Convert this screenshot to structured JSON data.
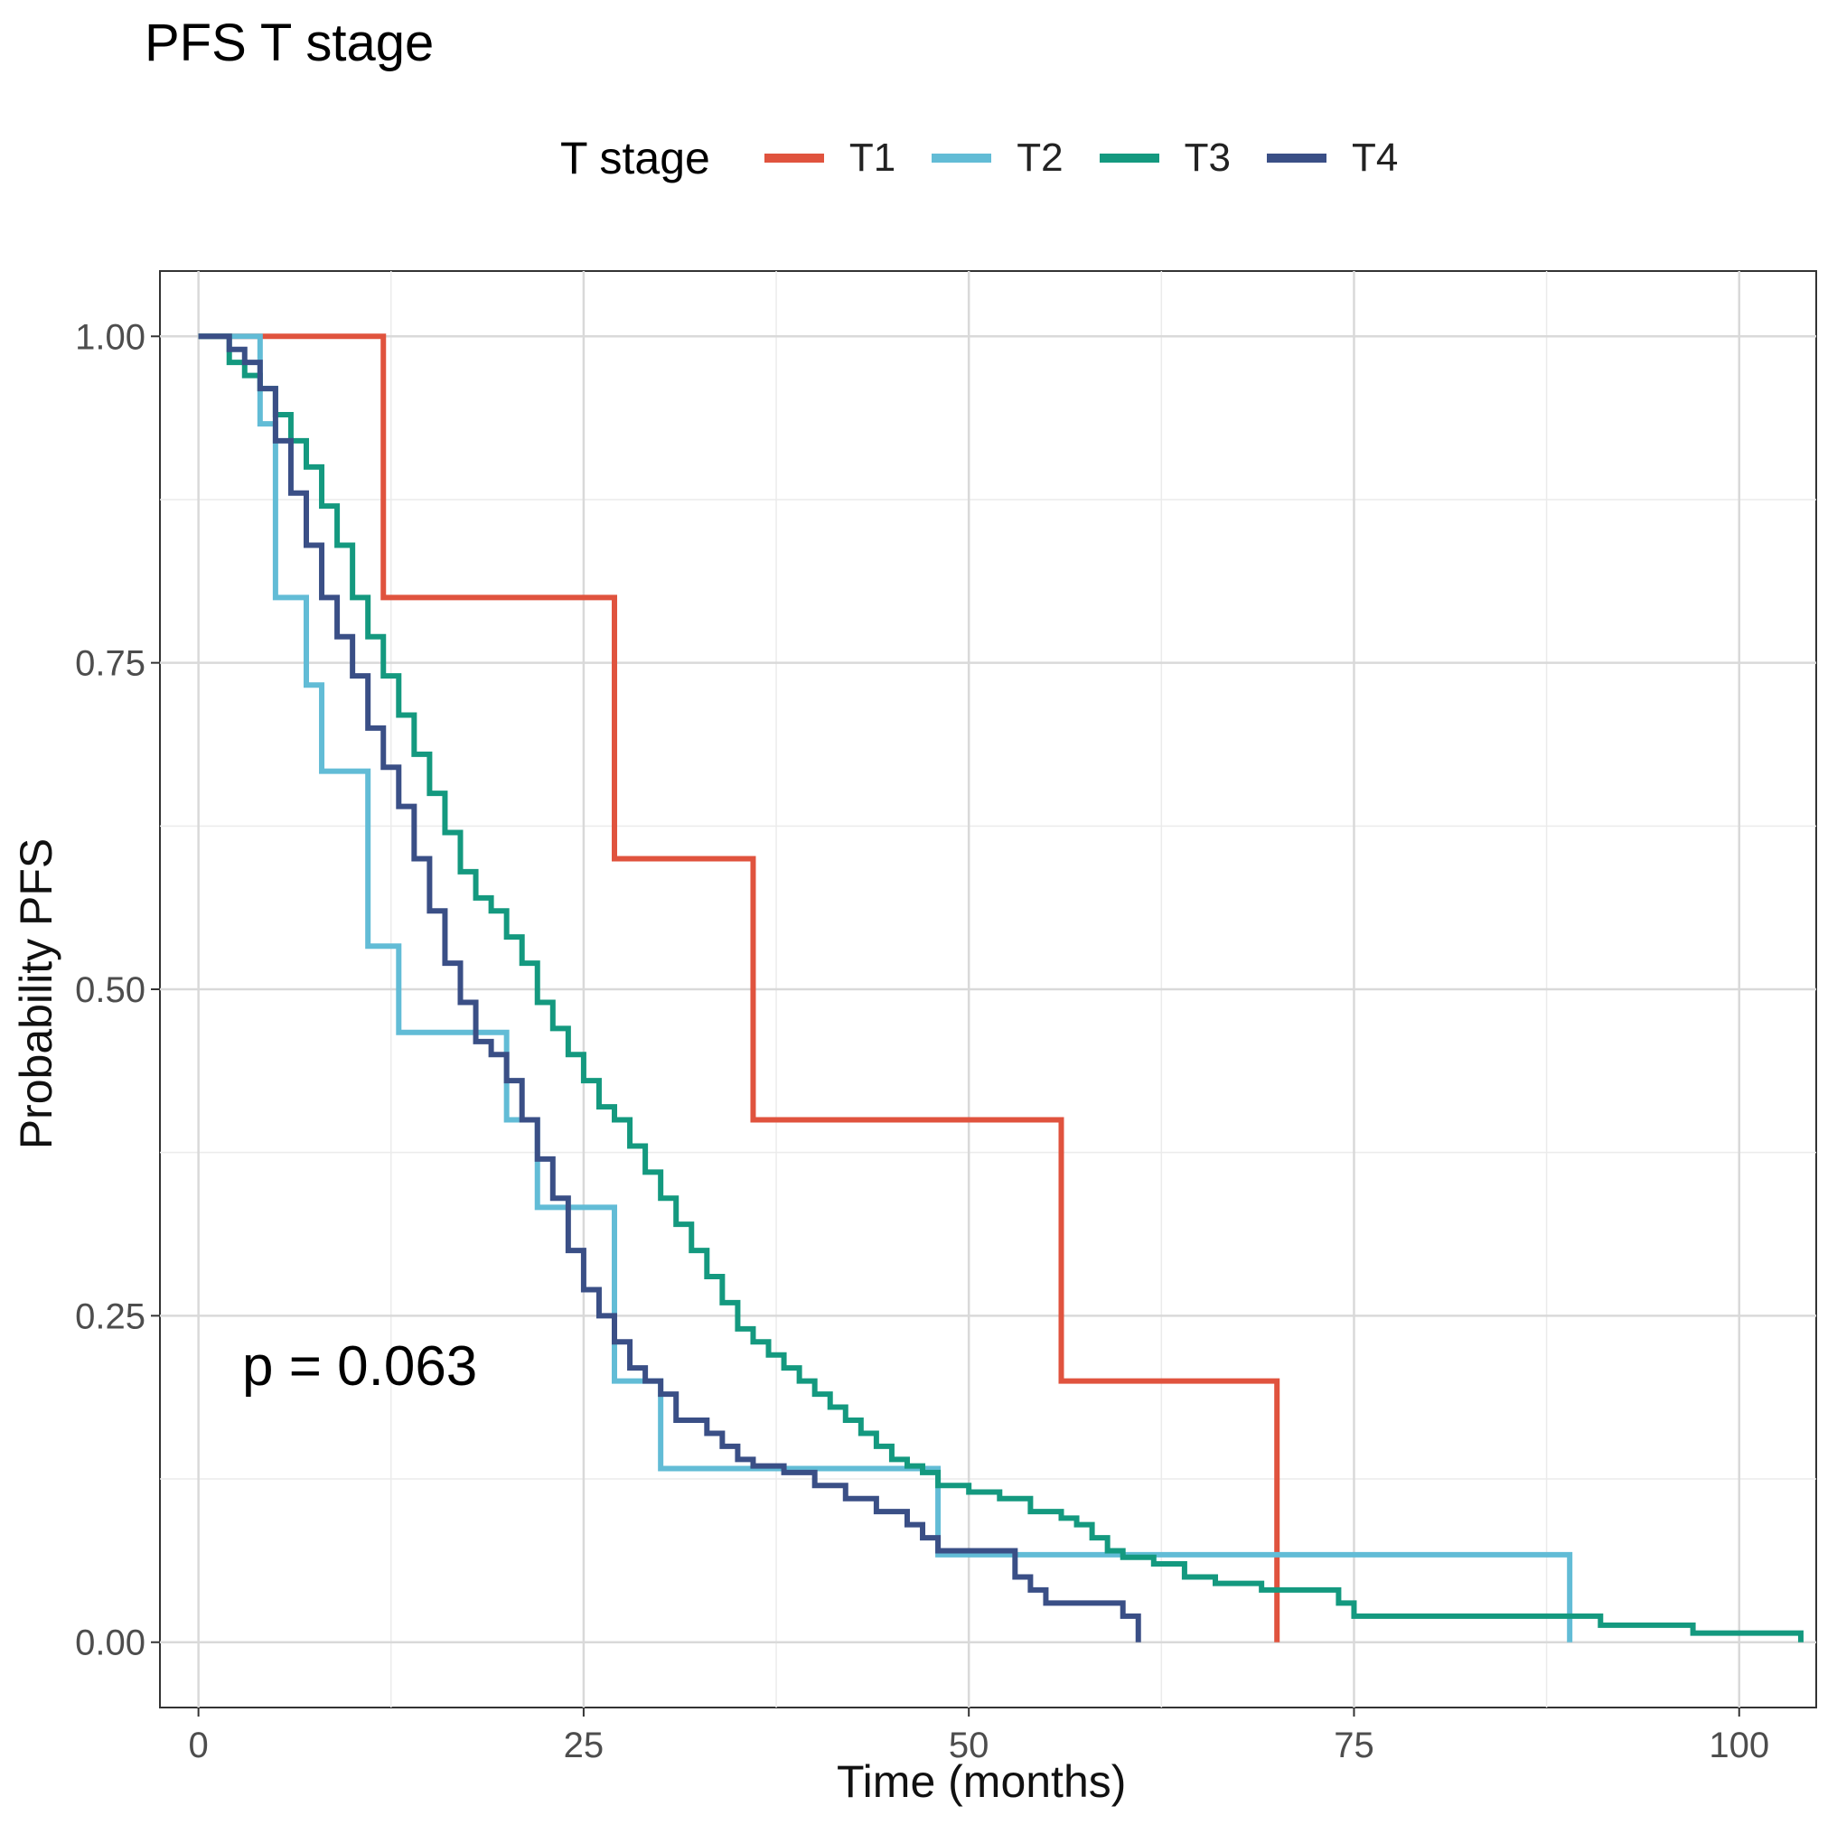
{
  "chart_data": {
    "type": "line",
    "step": true,
    "title": "PFS T stage",
    "xlabel": "Time (months)",
    "ylabel": "Probability PFS",
    "xlim": [
      -2.5,
      105
    ],
    "ylim": [
      -0.05,
      1.05
    ],
    "xticks": [
      0,
      25,
      50,
      75,
      100
    ],
    "yticks": [
      0.0,
      0.25,
      0.5,
      0.75,
      1.0
    ],
    "xtick_labels": [
      "0",
      "25",
      "50",
      "75",
      "100"
    ],
    "ytick_labels": [
      "0.00",
      "0.25",
      "0.50",
      "0.75",
      "1.00"
    ],
    "grid": true,
    "annotation": "p = 0.063",
    "legend_title": "T stage",
    "legend_position": "top",
    "series": [
      {
        "name": "T1",
        "color": "#E0533E",
        "x": [
          0,
          12,
          27,
          36,
          56,
          70
        ],
        "y": [
          1.0,
          0.8,
          0.6,
          0.4,
          0.2,
          0.0
        ]
      },
      {
        "name": "T2",
        "color": "#62BCD6",
        "x": [
          0,
          4,
          5,
          7,
          8,
          11,
          13,
          20,
          22,
          27,
          30,
          48,
          89
        ],
        "y": [
          1.0,
          0.933,
          0.8,
          0.733,
          0.667,
          0.533,
          0.467,
          0.4,
          0.333,
          0.2,
          0.133,
          0.067,
          0.0
        ]
      },
      {
        "name": "T3",
        "color": "#14997F",
        "x": [
          0,
          2,
          3,
          4,
          5,
          6,
          7,
          8,
          9,
          10,
          11,
          12,
          13,
          14,
          15,
          16,
          17,
          18,
          19,
          20,
          21,
          22,
          23,
          24,
          25,
          26,
          27,
          28,
          29,
          30,
          31,
          32,
          33,
          34,
          35,
          36,
          37,
          38,
          39,
          40,
          41,
          42,
          43,
          44,
          45,
          46,
          47,
          48,
          50,
          52,
          54,
          56,
          57,
          58,
          59,
          60,
          62,
          64,
          66,
          69,
          74,
          75,
          89,
          91,
          97,
          104
        ],
        "y": [
          1.0,
          0.98,
          0.97,
          0.96,
          0.94,
          0.92,
          0.9,
          0.87,
          0.84,
          0.8,
          0.77,
          0.74,
          0.71,
          0.68,
          0.65,
          0.62,
          0.59,
          0.57,
          0.56,
          0.54,
          0.52,
          0.49,
          0.47,
          0.45,
          0.43,
          0.41,
          0.4,
          0.38,
          0.36,
          0.34,
          0.32,
          0.3,
          0.28,
          0.26,
          0.24,
          0.23,
          0.22,
          0.21,
          0.2,
          0.19,
          0.18,
          0.17,
          0.16,
          0.15,
          0.14,
          0.135,
          0.13,
          0.12,
          0.115,
          0.11,
          0.1,
          0.095,
          0.09,
          0.08,
          0.07,
          0.065,
          0.06,
          0.05,
          0.045,
          0.04,
          0.03,
          0.02,
          0.02,
          0.013,
          0.007,
          0.0
        ]
      },
      {
        "name": "T4",
        "color": "#3A4F86",
        "x": [
          0,
          2,
          3,
          4,
          5,
          6,
          7,
          8,
          9,
          10,
          11,
          12,
          13,
          14,
          15,
          16,
          17,
          18,
          19,
          20,
          21,
          22,
          23,
          24,
          25,
          26,
          27,
          28,
          29,
          30,
          31,
          33,
          34,
          35,
          36,
          38,
          40,
          42,
          44,
          46,
          47,
          48,
          53,
          54,
          55,
          60,
          61
        ],
        "y": [
          1.0,
          0.99,
          0.98,
          0.96,
          0.92,
          0.88,
          0.84,
          0.8,
          0.77,
          0.74,
          0.7,
          0.67,
          0.64,
          0.6,
          0.56,
          0.52,
          0.49,
          0.46,
          0.45,
          0.43,
          0.4,
          0.37,
          0.34,
          0.3,
          0.27,
          0.25,
          0.23,
          0.21,
          0.2,
          0.19,
          0.17,
          0.16,
          0.15,
          0.14,
          0.135,
          0.13,
          0.12,
          0.11,
          0.1,
          0.09,
          0.08,
          0.07,
          0.05,
          0.04,
          0.03,
          0.02,
          0.0
        ]
      }
    ]
  }
}
